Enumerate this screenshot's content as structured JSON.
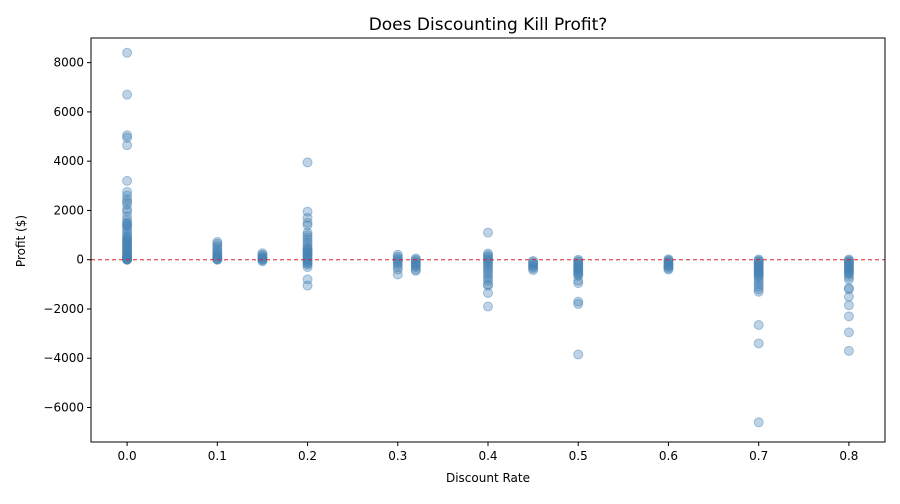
{
  "chart_data": {
    "type": "scatter",
    "title": "Does Discounting Kill Profit?",
    "xlabel": "Discount Rate",
    "ylabel": "Profit ($)",
    "xlim": [
      -0.04,
      0.84
    ],
    "ylim": [
      -7400,
      9000
    ],
    "xticks": [
      {
        "v": 0.0,
        "label": "0.0"
      },
      {
        "v": 0.1,
        "label": "0.1"
      },
      {
        "v": 0.2,
        "label": "0.2"
      },
      {
        "v": 0.3,
        "label": "0.3"
      },
      {
        "v": 0.4,
        "label": "0.4"
      },
      {
        "v": 0.5,
        "label": "0.5"
      },
      {
        "v": 0.6,
        "label": "0.6"
      },
      {
        "v": 0.7,
        "label": "0.7"
      },
      {
        "v": 0.8,
        "label": "0.8"
      }
    ],
    "yticks": [
      {
        "v": -6000,
        "label": "−6000"
      },
      {
        "v": -4000,
        "label": "−4000"
      },
      {
        "v": -2000,
        "label": "−2000"
      },
      {
        "v": 0,
        "label": "0"
      },
      {
        "v": 2000,
        "label": "2000"
      },
      {
        "v": 4000,
        "label": "4000"
      },
      {
        "v": 6000,
        "label": "6000"
      },
      {
        "v": 8000,
        "label": "8000"
      }
    ],
    "reference_line": {
      "y": 0,
      "style": "dashed",
      "color": "#d62728"
    },
    "grid": false,
    "marker_color": "#4682b4",
    "marker_opacity": 0.35,
    "groups": [
      {
        "x": 0.0,
        "y": [
          8400,
          6700,
          5050,
          4950,
          4650,
          3200,
          2750,
          2600,
          2450,
          2350,
          2250,
          2050,
          1950,
          1750,
          1600,
          1500,
          1450,
          1400,
          1350,
          1250,
          1150,
          1050,
          950,
          900,
          850,
          800,
          750,
          700,
          650,
          600,
          550,
          500,
          450,
          400,
          350,
          300,
          250,
          200,
          150,
          120,
          90,
          60,
          40,
          20,
          10,
          5,
          0
        ]
      },
      {
        "x": 0.1,
        "y": [
          720,
          650,
          560,
          480,
          400,
          330,
          260,
          200,
          150,
          100,
          60,
          30,
          10,
          0
        ]
      },
      {
        "x": 0.15,
        "y": [
          260,
          200,
          150,
          110,
          70,
          40,
          10,
          -20,
          -60
        ]
      },
      {
        "x": 0.2,
        "y": [
          3950,
          1950,
          1700,
          1500,
          1400,
          1100,
          1000,
          900,
          800,
          700,
          600,
          500,
          450,
          400,
          350,
          300,
          250,
          200,
          150,
          100,
          50,
          0,
          -50,
          -100,
          -150,
          -200,
          -300,
          -800,
          -1050
        ]
      },
      {
        "x": 0.3,
        "y": [
          200,
          120,
          60,
          0,
          -60,
          -120,
          -200,
          -300,
          -400,
          -600
        ]
      },
      {
        "x": 0.32,
        "y": [
          50,
          0,
          -50,
          -100,
          -150,
          -200,
          -250,
          -300,
          -400,
          -450
        ]
      },
      {
        "x": 0.4,
        "y": [
          1100,
          250,
          180,
          120,
          60,
          0,
          -60,
          -120,
          -200,
          -280,
          -360,
          -450,
          -550,
          -650,
          -750,
          -850,
          -1000,
          -1050,
          -1350,
          -1900
        ]
      },
      {
        "x": 0.45,
        "y": [
          -50,
          -100,
          -150,
          -200,
          -250,
          -300,
          -350,
          -420
        ]
      },
      {
        "x": 0.5,
        "y": [
          0,
          -50,
          -100,
          -150,
          -200,
          -250,
          -300,
          -350,
          -400,
          -450,
          -500,
          -550,
          -600,
          -650,
          -850,
          -950,
          -1700,
          -1800,
          -3850
        ]
      },
      {
        "x": 0.6,
        "y": [
          20,
          -20,
          -60,
          -100,
          -140,
          -180,
          -220,
          -260,
          -300,
          -350,
          -400
        ]
      },
      {
        "x": 0.7,
        "y": [
          10,
          -30,
          -70,
          -110,
          -150,
          -200,
          -250,
          -300,
          -350,
          -400,
          -450,
          -500,
          -550,
          -600,
          -650,
          -700,
          -800,
          -900,
          -1000,
          -1100,
          -1200,
          -1300,
          -2650,
          -3400,
          -6600
        ]
      },
      {
        "x": 0.8,
        "y": [
          10,
          -30,
          -70,
          -110,
          -150,
          -200,
          -250,
          -300,
          -350,
          -400,
          -450,
          -500,
          -550,
          -600,
          -700,
          -800,
          -1150,
          -1200,
          -1500,
          -1850,
          -2300,
          -2950,
          -3700
        ]
      }
    ]
  }
}
